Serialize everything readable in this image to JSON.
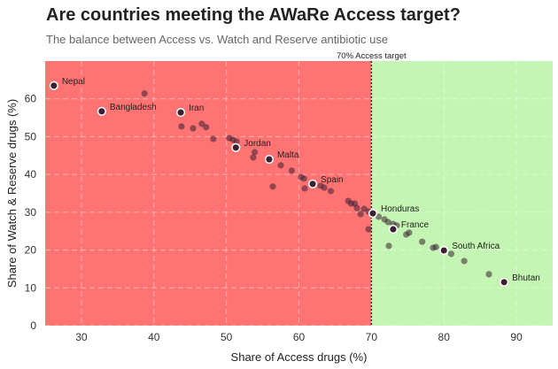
{
  "title": "Are countries meeting the AWaRe Access target?",
  "subtitle": "The balance between Access vs. Watch and Reserve antibiotic use",
  "chart_data": {
    "type": "scatter",
    "xlabel": "Share of Access drugs (%)",
    "ylabel": "Share of Watch & Reserve drugs (%)",
    "xlim": [
      25,
      95
    ],
    "ylim": [
      0,
      70
    ],
    "xticks": [
      30,
      40,
      50,
      60,
      70,
      80,
      90
    ],
    "yticks": [
      0,
      10,
      20,
      30,
      40,
      50,
      60
    ],
    "grid": true,
    "target_line": {
      "x": 70,
      "label": "70% Access target"
    },
    "regions": {
      "below_target": "#ff7373",
      "above_target": "#c4f5b2"
    },
    "point_color": "#3b1f33",
    "labeled_points": [
      {
        "name": "Nepal",
        "x": 26.2,
        "y": 63.5
      },
      {
        "name": "Bangladesh",
        "x": 32.8,
        "y": 56.7
      },
      {
        "name": "Iran",
        "x": 43.7,
        "y": 56.4
      },
      {
        "name": "Jordan",
        "x": 51.3,
        "y": 47.1
      },
      {
        "name": "Malta",
        "x": 55.9,
        "y": 44.0
      },
      {
        "name": "Spain",
        "x": 61.9,
        "y": 37.5
      },
      {
        "name": "Honduras",
        "x": 70.2,
        "y": 29.7
      },
      {
        "name": "France",
        "x": 73.0,
        "y": 25.5
      },
      {
        "name": "South Africa",
        "x": 80.0,
        "y": 19.9
      },
      {
        "name": "Bhutan",
        "x": 88.3,
        "y": 11.5
      }
    ],
    "other_points": [
      [
        38.7,
        61.4
      ],
      [
        43.8,
        52.7
      ],
      [
        45.4,
        52.2
      ],
      [
        46.6,
        53.4
      ],
      [
        47.2,
        52.5
      ],
      [
        48.2,
        49.4
      ],
      [
        50.4,
        49.6
      ],
      [
        50.9,
        49.2
      ],
      [
        51.4,
        48.7
      ],
      [
        53.9,
        45.9
      ],
      [
        53.7,
        44.5
      ],
      [
        57.5,
        42.4
      ],
      [
        59.0,
        41.0
      ],
      [
        56.4,
        36.8
      ],
      [
        60.3,
        39.3
      ],
      [
        60.7,
        38.9
      ],
      [
        60.8,
        36.3
      ],
      [
        63.0,
        37.0
      ],
      [
        63.5,
        36.5
      ],
      [
        64.4,
        35.6
      ],
      [
        66.8,
        33.0
      ],
      [
        67.2,
        32.3
      ],
      [
        67.7,
        32.3
      ],
      [
        68.0,
        31.1
      ],
      [
        69.0,
        30.9
      ],
      [
        68.5,
        29.5
      ],
      [
        69.6,
        30.2
      ],
      [
        69.6,
        25.5
      ],
      [
        71.0,
        28.8
      ],
      [
        71.8,
        28.1
      ],
      [
        72.3,
        27.4
      ],
      [
        73.0,
        26.9
      ],
      [
        73.5,
        26.5
      ],
      [
        74.8,
        24.1
      ],
      [
        75.2,
        24.6
      ],
      [
        72.4,
        21.1
      ],
      [
        77.0,
        22.2
      ],
      [
        78.5,
        20.6
      ],
      [
        78.9,
        20.8
      ],
      [
        81.0,
        19.0
      ],
      [
        82.8,
        17.1
      ],
      [
        86.2,
        13.6
      ]
    ]
  }
}
